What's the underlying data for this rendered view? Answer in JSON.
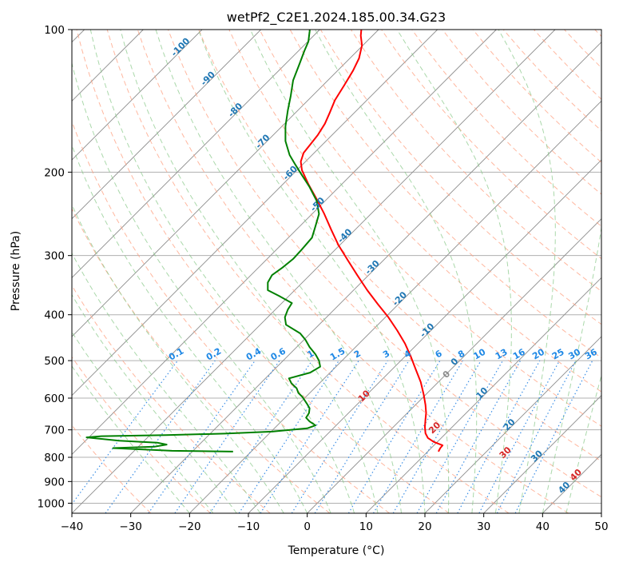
{
  "chart_data": {
    "type": "line",
    "title": "wetPf2_C2E1.2024.185.00.34.G23",
    "xlabel": "Temperature (°C)",
    "ylabel": "Pressure (hPa)",
    "xlim": [
      -40,
      50
    ],
    "ylim": [
      1050,
      100
    ],
    "y_scale": "log",
    "grid": true,
    "x_ticks": [
      -40,
      -30,
      -20,
      -10,
      0,
      10,
      20,
      30,
      40,
      50
    ],
    "x_tick_labels": [
      "−40",
      "−30",
      "−20",
      "−10",
      "0",
      "10",
      "20",
      "30",
      "40",
      "50"
    ],
    "y_ticks": [
      100,
      200,
      300,
      400,
      500,
      600,
      700,
      800,
      900,
      1000
    ],
    "y_tick_labels": [
      "100",
      "200",
      "300",
      "400",
      "500",
      "600",
      "700",
      "800",
      "900",
      "1000"
    ],
    "series": [
      {
        "role": "temperature",
        "color": "#ff0000",
        "points": [
          [
            22.3,
            778
          ],
          [
            22.6,
            765
          ],
          [
            23.0,
            755
          ],
          [
            21.5,
            742
          ],
          [
            20.5,
            728
          ],
          [
            20.1,
            712
          ],
          [
            20.0,
            690
          ],
          [
            20.1,
            665
          ],
          [
            20.2,
            645
          ],
          [
            20.1,
            620
          ],
          [
            19.8,
            590
          ],
          [
            19.3,
            555
          ],
          [
            18.4,
            520
          ],
          [
            17.6,
            490
          ],
          [
            16.6,
            460
          ],
          [
            15.3,
            432
          ],
          [
            13.8,
            405
          ],
          [
            12.0,
            380
          ],
          [
            10.2,
            355
          ],
          [
            8.5,
            330
          ],
          [
            6.9,
            307
          ],
          [
            5.3,
            285
          ],
          [
            4.1,
            265
          ],
          [
            2.9,
            245
          ],
          [
            1.6,
            228
          ],
          [
            0.2,
            212
          ],
          [
            -0.9,
            198
          ],
          [
            -1.1,
            190
          ],
          [
            -0.6,
            182
          ],
          [
            0.5,
            175
          ],
          [
            1.8,
            167
          ],
          [
            3.0,
            158
          ],
          [
            3.8,
            150
          ],
          [
            4.7,
            141
          ],
          [
            6.3,
            131
          ],
          [
            7.8,
            122
          ],
          [
            8.8,
            115
          ],
          [
            9.3,
            108
          ],
          [
            9.1,
            103
          ],
          [
            9.2,
            100
          ]
        ]
      },
      {
        "role": "dewpoint",
        "color": "#008000",
        "points": [
          [
            -12.6,
            778
          ],
          [
            -23.0,
            775
          ],
          [
            -33.0,
            765
          ],
          [
            -26.0,
            760
          ],
          [
            -23.9,
            752
          ],
          [
            -25.5,
            745
          ],
          [
            -32.0,
            738
          ],
          [
            -37.5,
            726
          ],
          [
            -35.0,
            722
          ],
          [
            -24.0,
            718
          ],
          [
            -14.0,
            713
          ],
          [
            -6.0,
            706
          ],
          [
            0.0,
            695
          ],
          [
            1.4,
            685
          ],
          [
            0.4,
            672
          ],
          [
            -0.2,
            660
          ],
          [
            0.3,
            645
          ],
          [
            0.4,
            630
          ],
          [
            -0.1,
            615
          ],
          [
            -0.8,
            597
          ],
          [
            -1.5,
            585
          ],
          [
            -1.8,
            572
          ],
          [
            -2.7,
            558
          ],
          [
            -3.1,
            545
          ],
          [
            0.5,
            530
          ],
          [
            2.2,
            515
          ],
          [
            2.0,
            500
          ],
          [
            1.4,
            485
          ],
          [
            0.4,
            468
          ],
          [
            -0.3,
            452
          ],
          [
            -1.2,
            438
          ],
          [
            -3.6,
            420
          ],
          [
            -3.8,
            405
          ],
          [
            -3.3,
            390
          ],
          [
            -2.6,
            378
          ],
          [
            -4.8,
            365
          ],
          [
            -6.7,
            355
          ],
          [
            -6.7,
            342
          ],
          [
            -6.0,
            330
          ],
          [
            -4.2,
            318
          ],
          [
            -2.4,
            305
          ],
          [
            -1.0,
            292
          ],
          [
            0.8,
            275
          ],
          [
            1.4,
            260
          ],
          [
            2.0,
            245
          ],
          [
            1.6,
            230
          ],
          [
            0.4,
            215
          ],
          [
            -1.0,
            202
          ],
          [
            -2.0,
            193
          ],
          [
            -3.0,
            184
          ],
          [
            -3.7,
            172
          ],
          [
            -3.7,
            160
          ],
          [
            -3.3,
            148
          ],
          [
            -2.8,
            138
          ],
          [
            -2.4,
            128
          ],
          [
            -1.3,
            118
          ],
          [
            -0.5,
            111
          ],
          [
            0.2,
            106
          ],
          [
            0.4,
            101
          ],
          [
            0.5,
            98
          ]
        ]
      }
    ],
    "dry_adiabat_labels": [
      "-100",
      "-90",
      "-80",
      "-70",
      "-60",
      "-50",
      "-40",
      "-30",
      "-20",
      "-10",
      "0",
      "10",
      "20",
      "30",
      "40"
    ],
    "mixing_ratio_labels": [
      "0.1",
      "0.2",
      "0.4",
      "0.6",
      "1",
      "1.5",
      "2",
      "3",
      "4",
      "6",
      "8",
      "10",
      "13",
      "16",
      "20",
      "25",
      "30",
      "36"
    ],
    "colors": {
      "temperature": "#ff0000",
      "dewpoint": "#008000",
      "dry_adiabat_lines": "#ff9f7f",
      "dry_adiabat_labels": "#1f77b4",
      "moist_adiabat_lines": "#86c786",
      "mixing_ratio_lines": "#3c8fe6",
      "mixing_ratio_labels": "#1e88e5",
      "moist_labels": "#d62728",
      "isotherms": "#8c8c8c",
      "grid": "#b0b0b0"
    },
    "moist_adiabat_labels": [
      "10",
      "20",
      "30",
      "40"
    ],
    "isotherm_labels": [
      "0"
    ]
  }
}
